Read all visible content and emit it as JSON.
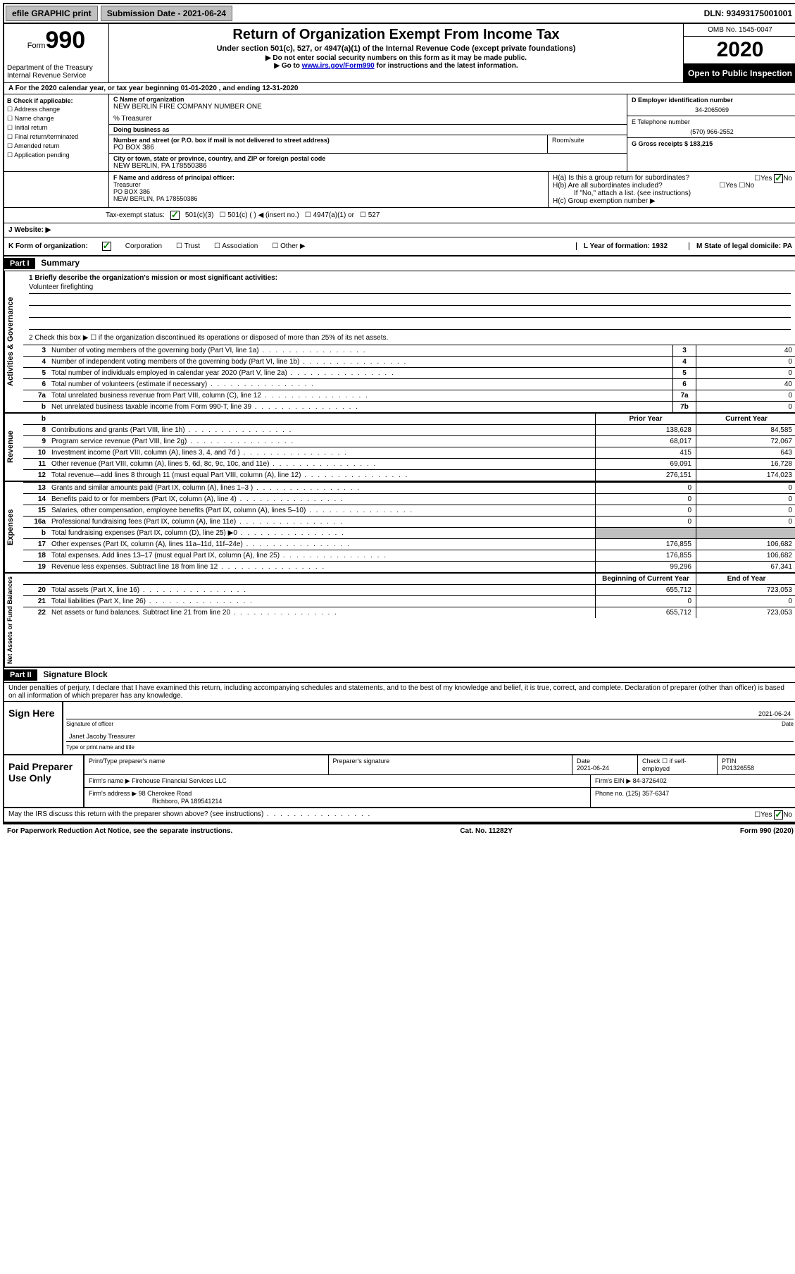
{
  "topbar": {
    "efile": "efile GRAPHIC print",
    "submission_label": "Submission Date - 2021-06-24",
    "dln": "DLN: 93493175001001"
  },
  "header": {
    "form_prefix": "Form",
    "form_number": "990",
    "dept": "Department of the Treasury\nInternal Revenue Service",
    "title": "Return of Organization Exempt From Income Tax",
    "subtitle": "Under section 501(c), 527, or 4947(a)(1) of the Internal Revenue Code (except private foundations)",
    "note1": "▶ Do not enter social security numbers on this form as it may be made public.",
    "note2_prefix": "▶ Go to ",
    "note2_link": "www.irs.gov/Form990",
    "note2_suffix": " for instructions and the latest information.",
    "omb": "OMB No. 1545-0047",
    "year": "2020",
    "inspection": "Open to Public Inspection"
  },
  "row_a": "A For the 2020 calendar year, or tax year beginning 01-01-2020    , and ending 12-31-2020",
  "section_b": {
    "title": "B Check if applicable:",
    "items": [
      "Address change",
      "Name change",
      "Initial return",
      "Final return/terminated",
      "Amended return",
      "Application pending"
    ]
  },
  "section_c": {
    "name_label": "C Name of organization",
    "name": "NEW BERLIN FIRE COMPANY NUMBER ONE",
    "treasurer": "% Treasurer",
    "dba_label": "Doing business as",
    "street_label": "Number and street (or P.O. box if mail is not delivered to street address)",
    "street": "PO BOX 386",
    "room_label": "Room/suite",
    "city_label": "City or town, state or province, country, and ZIP or foreign postal code",
    "city": "NEW BERLIN, PA  178550386"
  },
  "section_d": {
    "ein_label": "D Employer identification number",
    "ein": "34-2065069",
    "phone_label": "E Telephone number",
    "phone": "(570) 966-2552",
    "gross_label": "G Gross receipts $ 183,215"
  },
  "section_f": {
    "label": "F Name and address of principal officer:",
    "name": "Treasurer",
    "street": "PO BOX 386",
    "city": "NEW BERLIN, PA  178550386"
  },
  "section_h": {
    "ha": "H(a)  Is this a group return for subordinates?",
    "hb": "H(b)  Are all subordinates included?",
    "hnote": "If \"No,\" attach a list. (see instructions)",
    "hc": "H(c)  Group exemption number ▶"
  },
  "tax_status": {
    "label": "Tax-exempt status:",
    "opts": [
      "501(c)(3)",
      "501(c) (   ) ◀ (insert no.)",
      "4947(a)(1) or",
      "527"
    ]
  },
  "website": {
    "label": "J   Website: ▶"
  },
  "row_k": {
    "k_label": "K Form of organization:",
    "k_opts": [
      "Corporation",
      "Trust",
      "Association",
      "Other ▶"
    ],
    "l": "L Year of formation: 1932",
    "m": "M State of legal domicile: PA"
  },
  "part1": {
    "header": "Part I",
    "title": "Summary",
    "q1_label": "1   Briefly describe the organization's mission or most significant activities:",
    "q1_val": "Volunteer firefighting",
    "q2": "2    Check this box ▶ ☐  if the organization discontinued its operations or disposed of more than 25% of its net assets.",
    "tabs": {
      "gov": "Activities & Governance",
      "rev": "Revenue",
      "exp": "Expenses",
      "net": "Net Assets or Fund Balances"
    },
    "col_prior": "Prior Year",
    "col_current": "Current Year",
    "col_begin": "Beginning of Current Year",
    "col_end": "End of Year",
    "gov_lines": [
      {
        "n": "3",
        "desc": "Number of voting members of the governing body (Part VI, line 1a)",
        "box": "3",
        "v": "40"
      },
      {
        "n": "4",
        "desc": "Number of independent voting members of the governing body (Part VI, line 1b)",
        "box": "4",
        "v": "0"
      },
      {
        "n": "5",
        "desc": "Total number of individuals employed in calendar year 2020 (Part V, line 2a)",
        "box": "5",
        "v": "0"
      },
      {
        "n": "6",
        "desc": "Total number of volunteers (estimate if necessary)",
        "box": "6",
        "v": "40"
      },
      {
        "n": "7a",
        "desc": "Total unrelated business revenue from Part VIII, column (C), line 12",
        "box": "7a",
        "v": "0"
      },
      {
        "n": "b",
        "desc": "Net unrelated business taxable income from Form 990-T, line 39",
        "box": "7b",
        "v": "0"
      }
    ],
    "rev_lines": [
      {
        "n": "8",
        "desc": "Contributions and grants (Part VIII, line 1h)",
        "p": "138,628",
        "c": "84,585"
      },
      {
        "n": "9",
        "desc": "Program service revenue (Part VIII, line 2g)",
        "p": "68,017",
        "c": "72,067"
      },
      {
        "n": "10",
        "desc": "Investment income (Part VIII, column (A), lines 3, 4, and 7d )",
        "p": "415",
        "c": "643"
      },
      {
        "n": "11",
        "desc": "Other revenue (Part VIII, column (A), lines 5, 6d, 8c, 9c, 10c, and 11e)",
        "p": "69,091",
        "c": "16,728"
      },
      {
        "n": "12",
        "desc": "Total revenue—add lines 8 through 11 (must equal Part VIII, column (A), line 12)",
        "p": "276,151",
        "c": "174,023"
      }
    ],
    "exp_lines": [
      {
        "n": "13",
        "desc": "Grants and similar amounts paid (Part IX, column (A), lines 1–3 )",
        "p": "0",
        "c": "0"
      },
      {
        "n": "14",
        "desc": "Benefits paid to or for members (Part IX, column (A), line 4)",
        "p": "0",
        "c": "0"
      },
      {
        "n": "15",
        "desc": "Salaries, other compensation, employee benefits (Part IX, column (A), lines 5–10)",
        "p": "0",
        "c": "0"
      },
      {
        "n": "16a",
        "desc": "Professional fundraising fees (Part IX, column (A), line 11e)",
        "p": "0",
        "c": "0"
      },
      {
        "n": "b",
        "desc": "Total fundraising expenses (Part IX, column (D), line 25) ▶0",
        "p": "",
        "c": "",
        "shaded": true
      },
      {
        "n": "17",
        "desc": "Other expenses (Part IX, column (A), lines 11a–11d, 11f–24e)",
        "p": "176,855",
        "c": "106,682"
      },
      {
        "n": "18",
        "desc": "Total expenses. Add lines 13–17 (must equal Part IX, column (A), line 25)",
        "p": "176,855",
        "c": "106,682"
      },
      {
        "n": "19",
        "desc": "Revenue less expenses. Subtract line 18 from line 12",
        "p": "99,296",
        "c": "67,341"
      }
    ],
    "net_lines": [
      {
        "n": "20",
        "desc": "Total assets (Part X, line 16)",
        "p": "655,712",
        "c": "723,053"
      },
      {
        "n": "21",
        "desc": "Total liabilities (Part X, line 26)",
        "p": "0",
        "c": "0"
      },
      {
        "n": "22",
        "desc": "Net assets or fund balances. Subtract line 21 from line 20",
        "p": "655,712",
        "c": "723,053"
      }
    ]
  },
  "part2": {
    "header": "Part II",
    "title": "Signature Block",
    "declaration": "Under penalties of perjury, I declare that I have examined this return, including accompanying schedules and statements, and to the best of my knowledge and belief, it is true, correct, and complete. Declaration of preparer (other than officer) is based on all information of which preparer has any knowledge."
  },
  "sign": {
    "label": "Sign Here",
    "sig_caption": "Signature of officer",
    "date": "2021-06-24",
    "date_caption": "Date",
    "name": "Janet Jacoby  Treasurer",
    "name_caption": "Type or print name and title"
  },
  "preparer": {
    "label": "Paid Preparer Use Only",
    "h_print": "Print/Type preparer's name",
    "h_sig": "Preparer's signature",
    "h_date": "Date",
    "date": "2021-06-24",
    "h_check": "Check ☐ if self-employed",
    "h_ptin": "PTIN",
    "ptin": "P01326558",
    "firm_name_label": "Firm's name    ▶",
    "firm_name": "Firehouse Financial Services LLC",
    "firm_ein_label": "Firm's EIN ▶",
    "firm_ein": "84-3726402",
    "firm_addr_label": "Firm's address ▶",
    "firm_addr1": "98 Cherokee Road",
    "firm_addr2": "Richboro, PA  189541214",
    "phone_label": "Phone no.",
    "phone": "(125) 357-6347"
  },
  "discuss": "May the IRS discuss this return with the preparer shown above? (see instructions)",
  "footer": {
    "left": "For Paperwork Reduction Act Notice, see the separate instructions.",
    "mid": "Cat. No. 11282Y",
    "right": "Form 990 (2020)"
  },
  "yn": {
    "yes": "Yes",
    "no": "No"
  }
}
